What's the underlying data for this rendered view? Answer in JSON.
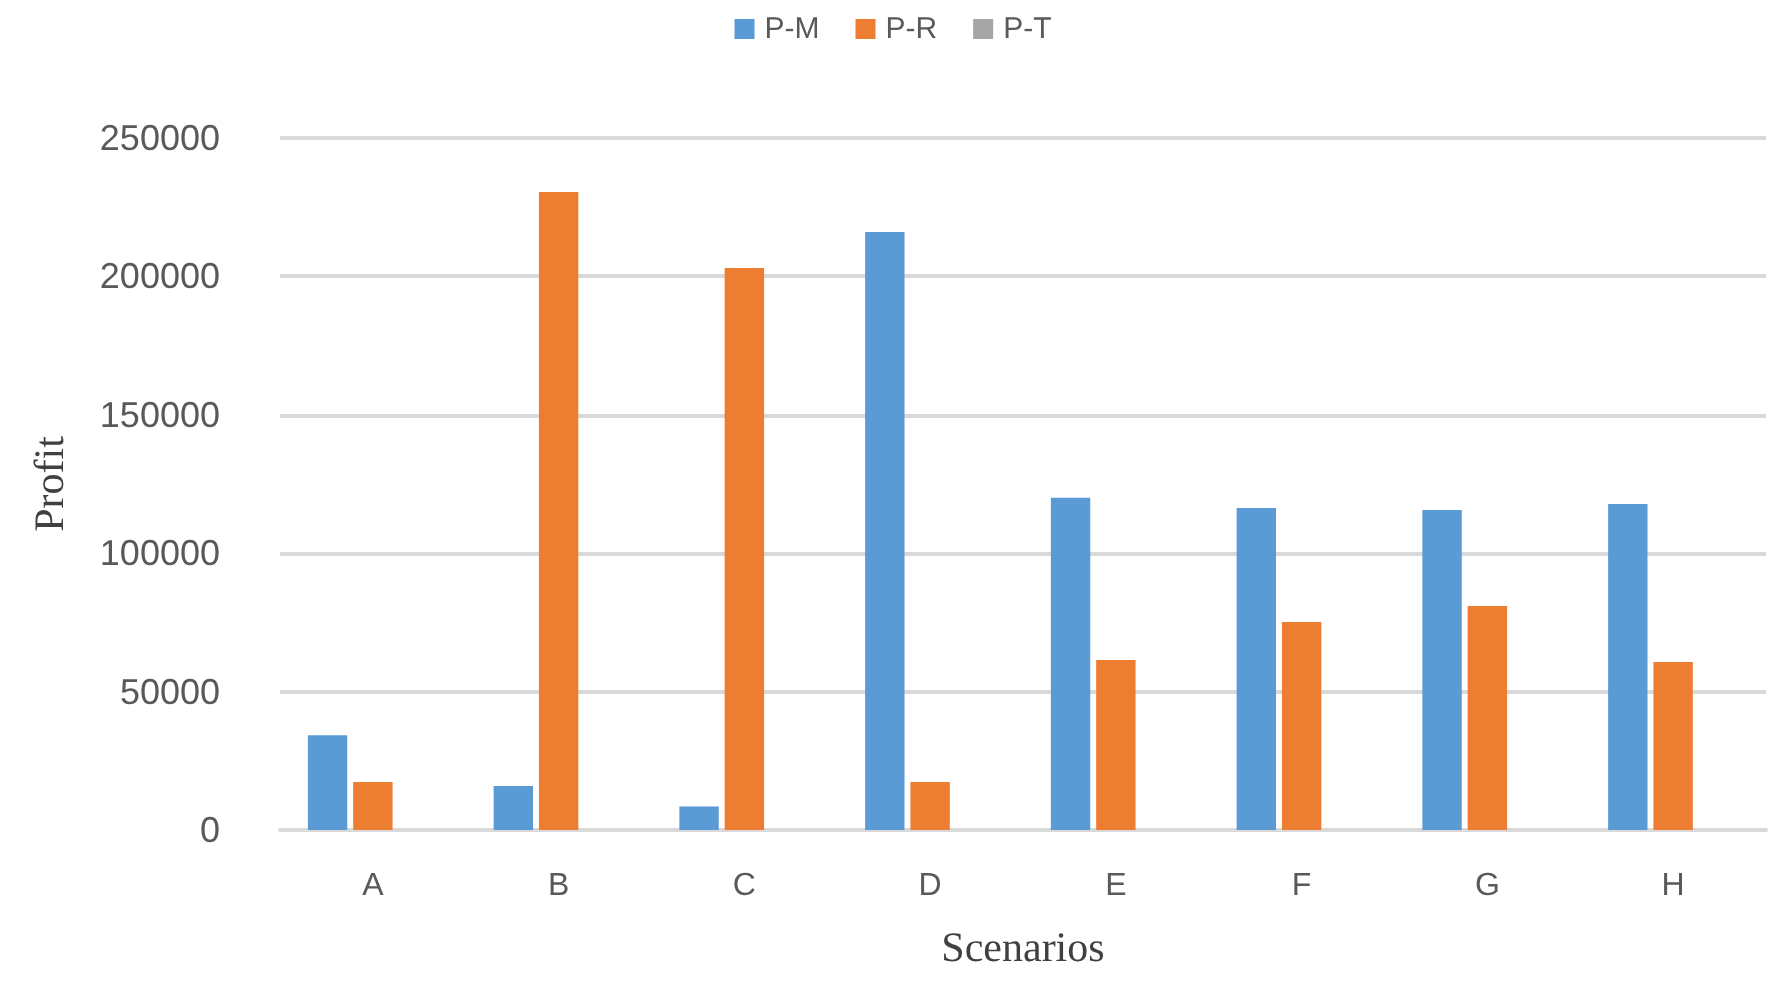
{
  "chart_data": {
    "type": "bar",
    "xlabel": "Scenarios",
    "ylabel": "Profit",
    "categories": [
      "A",
      "B",
      "C",
      "D",
      "E",
      "F",
      "G",
      "H"
    ],
    "series": [
      {
        "name": "P-M",
        "color": "#5b9bd5",
        "values": [
          34200,
          15900,
          8500,
          216000,
          120000,
          116300,
          115600,
          117800
        ]
      },
      {
        "name": "P-R",
        "color": "#ed7d31",
        "values": [
          17300,
          230500,
          203000,
          17300,
          61400,
          75100,
          80900,
          60700
        ]
      },
      {
        "name": "P-T",
        "color": "#a5a5a5",
        "values": [
          0,
          0,
          0,
          0,
          0,
          0,
          0,
          0
        ]
      }
    ],
    "ylim": [
      0,
      250000
    ],
    "yticks": [
      0,
      50000,
      100000,
      150000,
      200000,
      250000
    ],
    "grid": "y",
    "legend": "top"
  }
}
